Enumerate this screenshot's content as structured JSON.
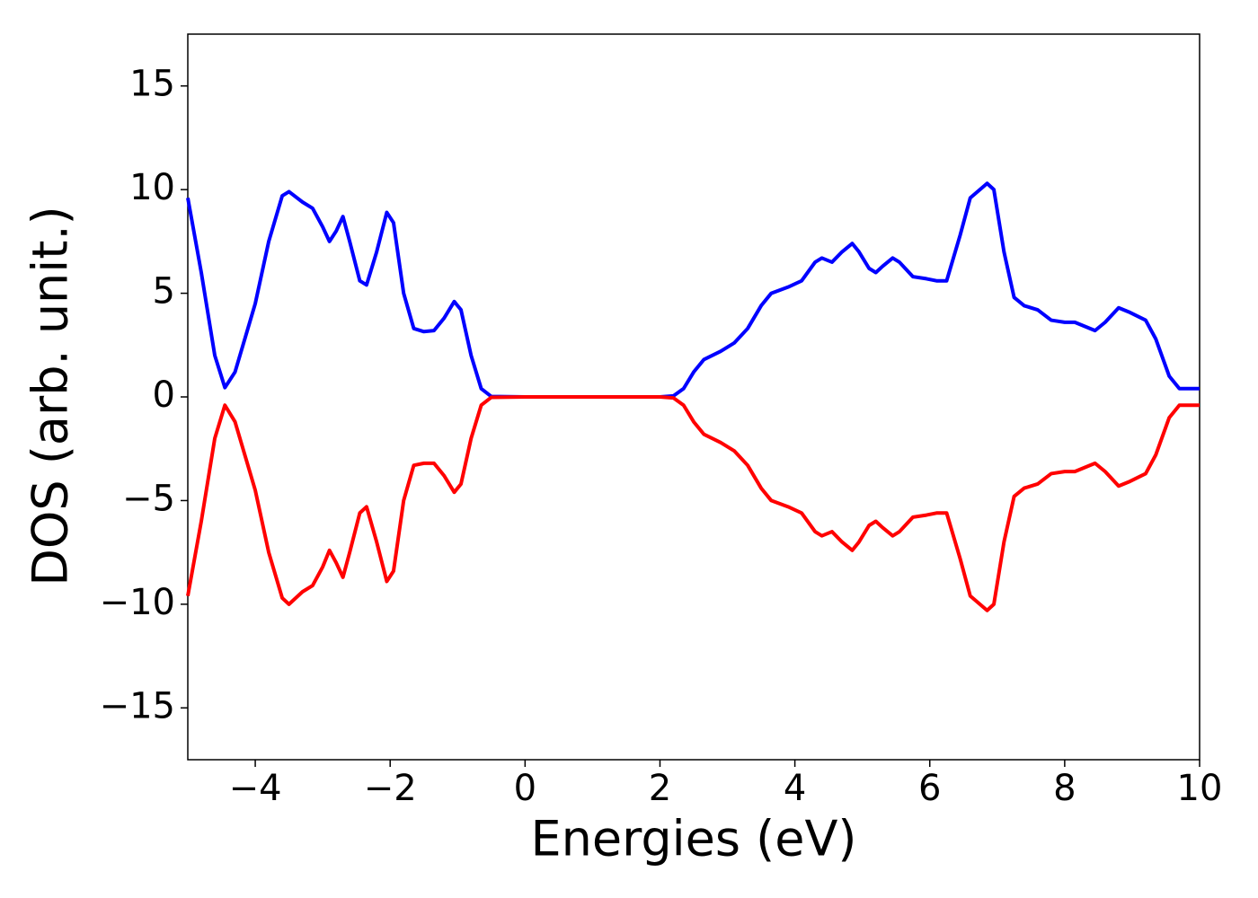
{
  "chart_data": {
    "type": "line",
    "xlabel": "Energies (eV)",
    "ylabel": "DOS (arb. unit.)",
    "x": [
      -5,
      -4.8,
      -4.6,
      -4.45,
      -4.3,
      -4.0,
      -3.8,
      -3.6,
      -3.5,
      -3.3,
      -3.15,
      -3.0,
      -2.9,
      -2.8,
      -2.7,
      -2.6,
      -2.45,
      -2.35,
      -2.2,
      -2.05,
      -1.95,
      -1.8,
      -1.65,
      -1.5,
      -1.35,
      -1.2,
      -1.05,
      -0.95,
      -0.8,
      -0.65,
      -0.5,
      0,
      1,
      2,
      2.2,
      2.35,
      2.5,
      2.65,
      2.9,
      3.1,
      3.3,
      3.5,
      3.65,
      3.9,
      4.1,
      4.3,
      4.4,
      4.55,
      4.7,
      4.85,
      4.95,
      5.1,
      5.2,
      5.3,
      5.45,
      5.55,
      5.75,
      5.95,
      6.1,
      6.25,
      6.45,
      6.6,
      6.85,
      6.95,
      7.1,
      7.25,
      7.4,
      7.6,
      7.8,
      8.0,
      8.15,
      8.3,
      8.45,
      8.6,
      8.8,
      8.95,
      9.2,
      9.35,
      9.55,
      9.7,
      9.85,
      10
    ],
    "series": [
      {
        "color": "#0000ff",
        "values": [
          9.6,
          6,
          2,
          0.45,
          1.2,
          4.5,
          7.5,
          9.7,
          9.9,
          9.4,
          9.1,
          8.2,
          7.5,
          8.0,
          8.7,
          7.5,
          5.6,
          5.4,
          7.0,
          8.9,
          8.4,
          5.0,
          3.3,
          3.15,
          3.2,
          3.8,
          4.6,
          4.2,
          2.0,
          0.4,
          0.02,
          0,
          0,
          0,
          0.05,
          0.4,
          1.2,
          1.8,
          2.2,
          2.6,
          3.3,
          4.4,
          5.0,
          5.3,
          5.6,
          6.5,
          6.7,
          6.5,
          7.0,
          7.4,
          7.0,
          6.2,
          6.0,
          6.3,
          6.7,
          6.5,
          5.8,
          5.7,
          5.6,
          5.6,
          7.8,
          9.6,
          10.3,
          10.0,
          7.0,
          4.8,
          4.4,
          4.2,
          3.7,
          3.6,
          3.6,
          3.4,
          3.2,
          3.6,
          4.3,
          4.1,
          3.7,
          2.8,
          1.0,
          0.4,
          0.4,
          0.4
        ]
      },
      {
        "color": "#ff0000",
        "values": [
          -9.6,
          -6,
          -2,
          -0.4,
          -1.2,
          -4.5,
          -7.5,
          -9.7,
          -10.0,
          -9.4,
          -9.1,
          -8.2,
          -7.4,
          -8.0,
          -8.7,
          -7.5,
          -5.6,
          -5.3,
          -7.0,
          -8.9,
          -8.4,
          -5.0,
          -3.3,
          -3.2,
          -3.2,
          -3.8,
          -4.6,
          -4.2,
          -2.0,
          -0.4,
          -0.02,
          0,
          0,
          0,
          -0.05,
          -0.4,
          -1.2,
          -1.8,
          -2.2,
          -2.6,
          -3.3,
          -4.4,
          -5.0,
          -5.3,
          -5.6,
          -6.5,
          -6.7,
          -6.5,
          -7.0,
          -7.4,
          -7.0,
          -6.2,
          -6.0,
          -6.3,
          -6.7,
          -6.5,
          -5.8,
          -5.7,
          -5.6,
          -5.6,
          -7.8,
          -9.6,
          -10.3,
          -10.0,
          -7.0,
          -4.8,
          -4.4,
          -4.2,
          -3.7,
          -3.6,
          -3.6,
          -3.4,
          -3.2,
          -3.6,
          -4.3,
          -4.1,
          -3.7,
          -2.8,
          -1.0,
          -0.4,
          -0.4,
          -0.4
        ]
      }
    ],
    "xlim": [
      -5,
      10
    ],
    "xticks": [
      {
        "value": -4,
        "label": "−4"
      },
      {
        "value": -2,
        "label": "−2"
      },
      0,
      2,
      4,
      6,
      8,
      10
    ],
    "ylim": [
      -17.5,
      17.5
    ],
    "yticks": [
      {
        "value": -15,
        "label": "−15"
      },
      {
        "value": -10,
        "label": "−10"
      },
      {
        "value": -5,
        "label": "−5"
      },
      0,
      5,
      10,
      15
    ],
    "grid": false
  }
}
